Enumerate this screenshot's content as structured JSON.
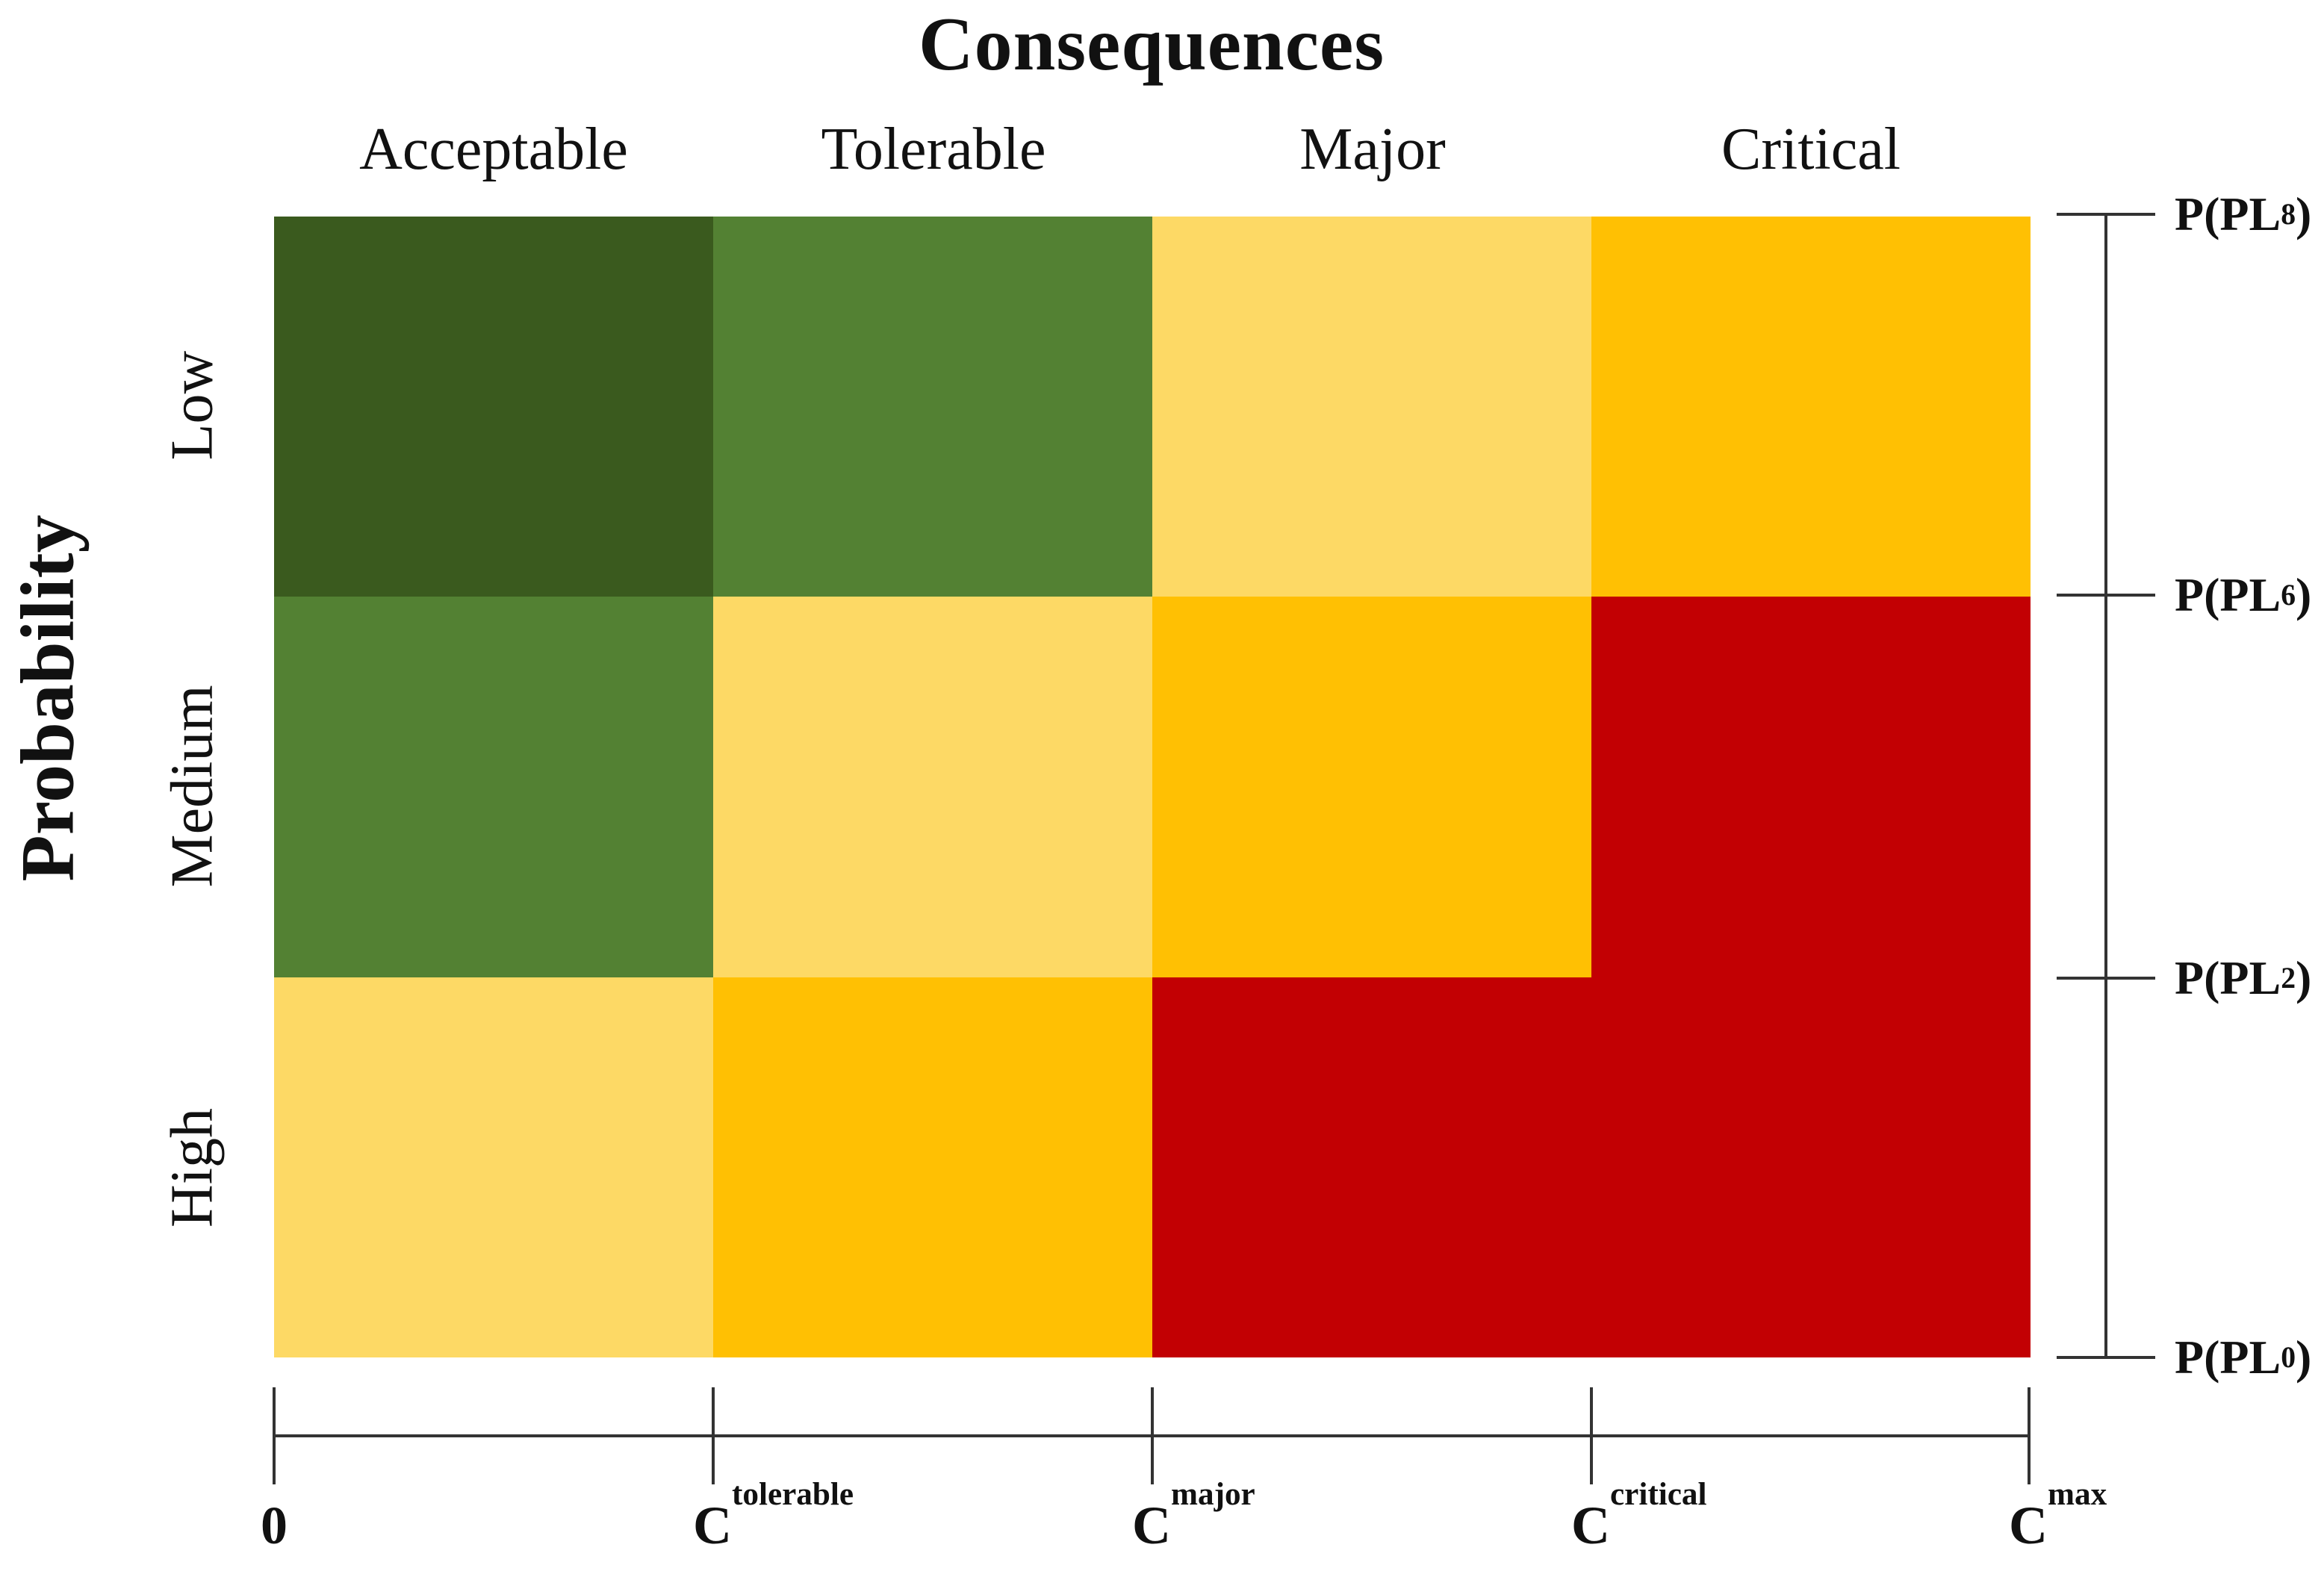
{
  "title": "Consequences",
  "axes": {
    "x_title": "Consequences",
    "y_title": "Probability",
    "column_labels": [
      "Acceptable",
      "Tolerable",
      "Major",
      "Critical"
    ],
    "row_labels": [
      "Low",
      "Medium",
      "High"
    ],
    "right_ticks": [
      {
        "pre": "P(PL",
        "sub": "8",
        "post": ")"
      },
      {
        "pre": "P(PL",
        "sub": "6",
        "post": ")"
      },
      {
        "pre": "P(PL",
        "sub": "2",
        "post": ")"
      },
      {
        "pre": "P(PL",
        "sub": "0",
        "post": ")"
      }
    ],
    "bottom_ticks": [
      {
        "pre": "0",
        "sub": ""
      },
      {
        "pre": "C",
        "sub": "tolerable"
      },
      {
        "pre": "C",
        "sub": "major"
      },
      {
        "pre": "C",
        "sub": "critical"
      },
      {
        "pre": "C",
        "sub": "max"
      }
    ]
  },
  "colors": {
    "dark_green": "#3A5A1E",
    "green": "#538133",
    "light_yellow": "#FDD965",
    "amber": "#FFC003",
    "red": "#C20003",
    "axis_line": "#333333"
  },
  "matrix": {
    "cells": [
      {
        "row": "Low",
        "col": "Acceptable",
        "level": "dark_green",
        "color": "#3A5A1E"
      },
      {
        "row": "Low",
        "col": "Tolerable",
        "level": "green",
        "color": "#538133"
      },
      {
        "row": "Low",
        "col": "Major",
        "level": "light_yellow",
        "color": "#FDD965"
      },
      {
        "row": "Low",
        "col": "Critical",
        "level": "amber",
        "color": "#FFC003"
      },
      {
        "row": "Medium",
        "col": "Acceptable",
        "level": "green",
        "color": "#538133"
      },
      {
        "row": "Medium",
        "col": "Tolerable",
        "level": "light_yellow",
        "color": "#FDD965"
      },
      {
        "row": "Medium",
        "col": "Major",
        "level": "amber",
        "color": "#FFC003"
      },
      {
        "row": "Medium",
        "col": "Critical",
        "level": "red",
        "color": "#C20003"
      },
      {
        "row": "High",
        "col": "Acceptable",
        "level": "light_yellow",
        "color": "#FDD965"
      },
      {
        "row": "High",
        "col": "Tolerable",
        "level": "amber",
        "color": "#FFC003"
      },
      {
        "row": "High",
        "col": "Major",
        "level": "red",
        "color": "#C20003"
      },
      {
        "row": "High",
        "col": "Critical",
        "level": "red",
        "color": "#C20003"
      }
    ]
  },
  "chart_data": {
    "type": "heatmap",
    "title": "Consequences",
    "xlabel": "Consequences",
    "ylabel": "Probability",
    "x_categories": [
      "Acceptable",
      "Tolerable",
      "Major",
      "Critical"
    ],
    "y_categories": [
      "Low",
      "Medium",
      "High"
    ],
    "cells": [
      [
        "dark_green",
        "green",
        "light_yellow",
        "amber"
      ],
      [
        "green",
        "light_yellow",
        "amber",
        "red"
      ],
      [
        "light_yellow",
        "amber",
        "red",
        "red"
      ]
    ],
    "palette": {
      "dark_green": "#3A5A1E",
      "green": "#538133",
      "light_yellow": "#FDD965",
      "amber": "#FFC003",
      "red": "#C20003"
    },
    "bottom_axis_tick_labels": [
      "0",
      "C_tolerable",
      "C_major",
      "C_critical",
      "C_max"
    ],
    "right_axis_tick_labels": [
      "P(PL_8)",
      "P(PL_6)",
      "P(PL_2)",
      "P(PL_0)"
    ],
    "legend": "none",
    "grid": false
  }
}
